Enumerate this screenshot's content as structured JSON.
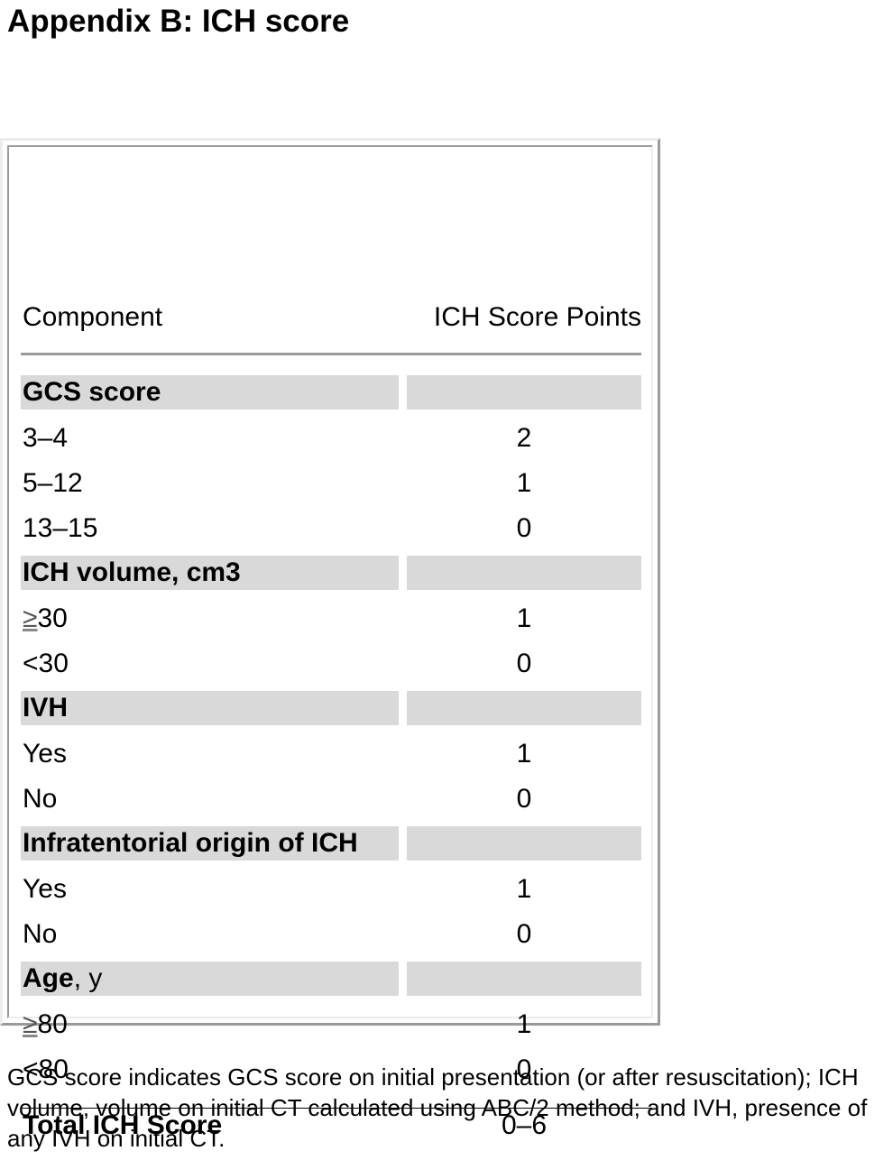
{
  "title": "Appendix B: ICH score",
  "table": {
    "header": {
      "component": "Component",
      "points": "ICH Score Points"
    },
    "sections": [
      {
        "label": "GCS score",
        "rows": [
          {
            "component": "3–4",
            "points": "2"
          },
          {
            "component": "5–12",
            "points": "1"
          },
          {
            "component": "13–15",
            "points": "0"
          }
        ]
      },
      {
        "label": "ICH volume, cm3",
        "rows": [
          {
            "symbol": "≥",
            "component": "30",
            "points": "1"
          },
          {
            "component": "<30",
            "points": "0"
          }
        ]
      },
      {
        "label": "IVH",
        "rows": [
          {
            "component": "Yes",
            "points": "1"
          },
          {
            "component": "No",
            "points": "0"
          }
        ]
      },
      {
        "label": "Infratentorial origin of ICH",
        "rows": [
          {
            "component": "Yes",
            "points": "1"
          },
          {
            "component": "No",
            "points": "0"
          }
        ]
      },
      {
        "label": "Age",
        "label_suffix": ", y",
        "rows": [
          {
            "symbol": "≥",
            "component": "80",
            "points": "1"
          },
          {
            "component": "<80",
            "points": "0"
          }
        ]
      }
    ],
    "total": {
      "label": "Total ICH Score",
      "points": "0–6"
    }
  },
  "footnote": "GCS score indicates GCS score on initial presentation (or after resuscitation); ICH volume, volume on initial CT calculated using ABC/2 method; and IVH, presence of any IVH on initial CT.",
  "colors": {
    "section_shading": "#d9d9d9",
    "header_rule": "#999999",
    "total_rule": "#000000"
  }
}
